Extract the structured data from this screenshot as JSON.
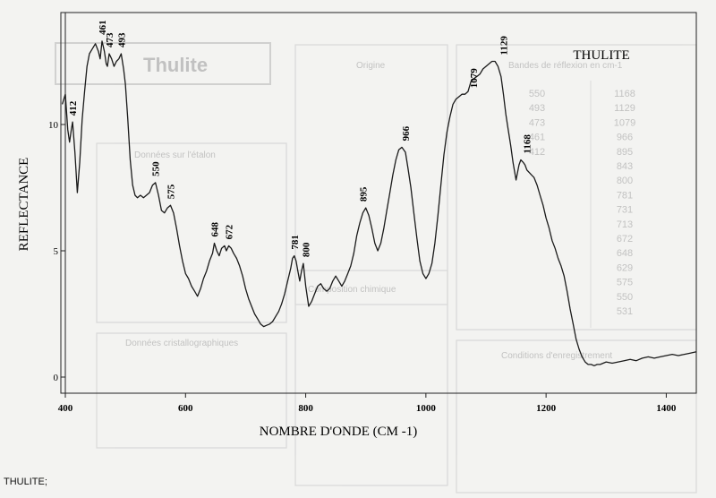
{
  "caption": "THULITE;",
  "chart_data": {
    "type": "line",
    "title": "THULITE",
    "xlabel": "NOMBRE D'ONDE (CM -1)",
    "ylabel": "REFLECTANCE",
    "xlim": [
      400,
      1450
    ],
    "ylim": [
      -0.3,
      14
    ],
    "x_ticks": [
      {
        "value": 400,
        "label": "400"
      },
      {
        "value": 600,
        "label": "600"
      },
      {
        "value": 800,
        "label": "800"
      },
      {
        "value": 1000,
        "label": "1000"
      },
      {
        "value": 1200,
        "label": "1200"
      },
      {
        "value": 1400,
        "label": "1400"
      }
    ],
    "y_ticks": [
      {
        "value": 0,
        "label": "0"
      },
      {
        "value": 5,
        "label": "5"
      },
      {
        "value": 10,
        "label": "10"
      }
    ],
    "series": [
      {
        "color": "#1a1a1a",
        "x": [
          395,
          400,
          404,
          407,
          410,
          412,
          416,
          420,
          424,
          428,
          432,
          436,
          440,
          445,
          450,
          455,
          458,
          461,
          465,
          468,
          470,
          473,
          477,
          481,
          485,
          489,
          493,
          497,
          500,
          504,
          508,
          512,
          516,
          520,
          525,
          530,
          535,
          540,
          545,
          550,
          555,
          560,
          565,
          570,
          575,
          580,
          585,
          590,
          595,
          600,
          605,
          610,
          615,
          620,
          625,
          630,
          635,
          640,
          645,
          648,
          652,
          656,
          660,
          665,
          668,
          672,
          676,
          680,
          685,
          690,
          695,
          700,
          705,
          710,
          715,
          720,
          725,
          730,
          735,
          740,
          745,
          750,
          755,
          760,
          765,
          770,
          775,
          778,
          781,
          784,
          787,
          790,
          793,
          796,
          800,
          805,
          810,
          815,
          820,
          825,
          830,
          835,
          840,
          845,
          850,
          855,
          860,
          865,
          870,
          875,
          880,
          885,
          890,
          895,
          900,
          905,
          910,
          915,
          920,
          925,
          930,
          935,
          940,
          945,
          950,
          955,
          960,
          966,
          970,
          975,
          980,
          985,
          990,
          995,
          1000,
          1005,
          1010,
          1015,
          1020,
          1025,
          1030,
          1035,
          1040,
          1045,
          1050,
          1055,
          1060,
          1065,
          1070,
          1075,
          1079,
          1085,
          1090,
          1095,
          1100,
          1105,
          1110,
          1115,
          1120,
          1125,
          1129,
          1133,
          1137,
          1141,
          1145,
          1150,
          1155,
          1158,
          1162,
          1165,
          1168,
          1172,
          1176,
          1180,
          1185,
          1190,
          1195,
          1200,
          1205,
          1210,
          1215,
          1220,
          1225,
          1230,
          1235,
          1240,
          1245,
          1250,
          1255,
          1260,
          1265,
          1270,
          1275,
          1280,
          1285,
          1290,
          1295,
          1300,
          1310,
          1320,
          1330,
          1340,
          1350,
          1360,
          1370,
          1380,
          1390,
          1400,
          1410,
          1420,
          1430,
          1440,
          1450
        ],
        "y": [
          10.8,
          11.2,
          9.8,
          9.3,
          9.8,
          10.1,
          8.9,
          7.3,
          8.5,
          10.2,
          11.3,
          12.3,
          12.8,
          13.0,
          13.2,
          12.9,
          12.6,
          13.3,
          12.9,
          12.4,
          12.3,
          12.8,
          12.6,
          12.3,
          12.5,
          12.6,
          12.8,
          12.2,
          11.6,
          10.2,
          8.6,
          7.6,
          7.2,
          7.1,
          7.2,
          7.1,
          7.2,
          7.3,
          7.6,
          7.7,
          7.2,
          6.6,
          6.5,
          6.7,
          6.8,
          6.5,
          5.9,
          5.2,
          4.6,
          4.1,
          3.9,
          3.6,
          3.4,
          3.2,
          3.5,
          3.9,
          4.2,
          4.6,
          4.9,
          5.3,
          5.0,
          4.8,
          5.1,
          5.2,
          5.0,
          5.2,
          5.1,
          4.9,
          4.7,
          4.4,
          4.0,
          3.5,
          3.1,
          2.8,
          2.5,
          2.3,
          2.1,
          2.0,
          2.05,
          2.1,
          2.2,
          2.4,
          2.6,
          2.9,
          3.3,
          3.8,
          4.3,
          4.7,
          4.8,
          4.6,
          4.2,
          3.8,
          4.2,
          4.5,
          3.6,
          2.8,
          3.0,
          3.3,
          3.6,
          3.7,
          3.5,
          3.4,
          3.5,
          3.8,
          4.0,
          3.8,
          3.6,
          3.8,
          4.1,
          4.4,
          4.9,
          5.6,
          6.1,
          6.5,
          6.7,
          6.4,
          5.9,
          5.3,
          5.0,
          5.3,
          5.9,
          6.6,
          7.3,
          8.0,
          8.6,
          9.0,
          9.1,
          8.9,
          8.3,
          7.5,
          6.5,
          5.5,
          4.6,
          4.1,
          3.9,
          4.1,
          4.5,
          5.3,
          6.4,
          7.6,
          8.8,
          9.7,
          10.3,
          10.8,
          11.0,
          11.1,
          11.2,
          11.2,
          11.3,
          11.7,
          11.8,
          11.9,
          12.0,
          12.2,
          12.3,
          12.4,
          12.5,
          12.5,
          12.3,
          11.9,
          11.2,
          10.4,
          9.8,
          9.2,
          8.5,
          7.8,
          8.4,
          8.6,
          8.5,
          8.4,
          8.2,
          8.1,
          8.0,
          7.9,
          7.6,
          7.2,
          6.8,
          6.3,
          5.9,
          5.4,
          5.1,
          4.7,
          4.4,
          4.0,
          3.4,
          2.7,
          2.1,
          1.5,
          1.1,
          0.8,
          0.6,
          0.5,
          0.5,
          0.45,
          0.5,
          0.5,
          0.55,
          0.6,
          0.55,
          0.6,
          0.65,
          0.7,
          0.65,
          0.75,
          0.8,
          0.75,
          0.8,
          0.85,
          0.9,
          0.85,
          0.9,
          0.95,
          1.0
        ]
      }
    ],
    "annotations": [
      {
        "text": "412",
        "x": 412,
        "y": 10.1
      },
      {
        "text": "461",
        "x": 461,
        "y": 13.3
      },
      {
        "text": "473",
        "x": 473,
        "y": 12.8
      },
      {
        "text": "493",
        "x": 493,
        "y": 12.8
      },
      {
        "text": "550",
        "x": 550,
        "y": 7.7
      },
      {
        "text": "575",
        "x": 575,
        "y": 6.8
      },
      {
        "text": "648",
        "x": 648,
        "y": 5.3
      },
      {
        "text": "672",
        "x": 672,
        "y": 5.2
      },
      {
        "text": "781",
        "x": 781,
        "y": 4.8
      },
      {
        "text": "800",
        "x": 800,
        "y": 4.5
      },
      {
        "text": "895",
        "x": 895,
        "y": 6.7
      },
      {
        "text": "966",
        "x": 966,
        "y": 9.1
      },
      {
        "text": "1079",
        "x": 1079,
        "y": 11.2
      },
      {
        "text": "1129",
        "x": 1129,
        "y": 12.5
      },
      {
        "text": "1168",
        "x": 1168,
        "y": 8.6
      }
    ]
  },
  "background_form": {
    "title": "Thulite",
    "origin_header": "Origine",
    "sample_data_header": "Données sur l'étalon",
    "crystal_header": "Données cristallographiques",
    "composition_header": "Composition chimique",
    "recording_header": "Conditions d'enregistrement",
    "raies_header": "Bandes de réflexion en cm-1",
    "raies_left": [
      "1168",
      "1129",
      "1079",
      "966",
      "895",
      "843",
      "800",
      "781",
      "731",
      "713",
      "672",
      "648",
      "629",
      "575",
      "550",
      "531"
    ],
    "raies_right": [
      "550",
      "493",
      "473",
      "461",
      "412"
    ]
  }
}
